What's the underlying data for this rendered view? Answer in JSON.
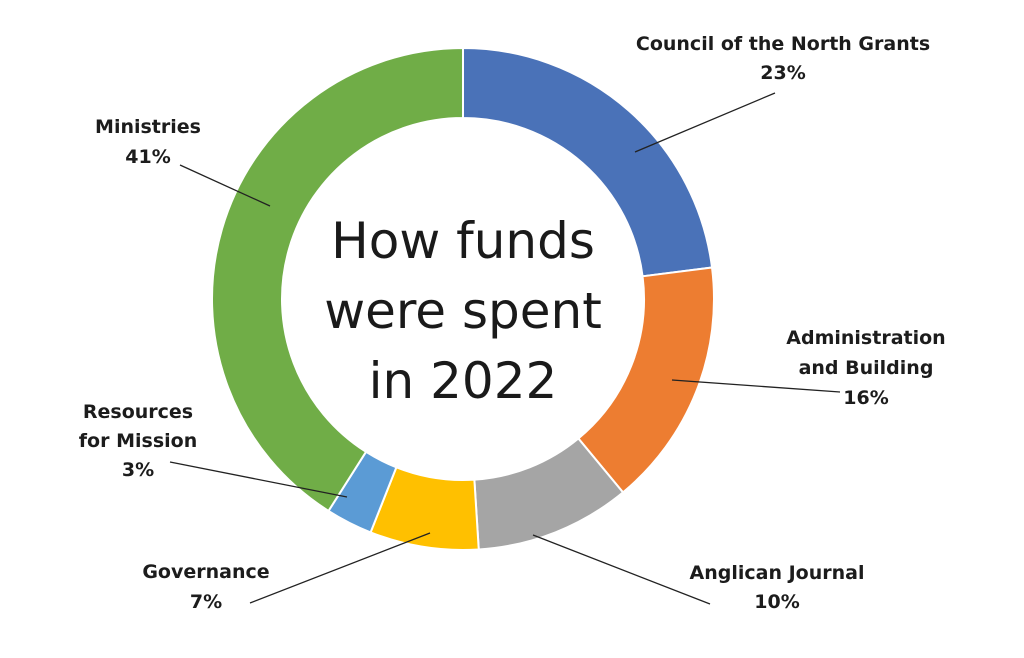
{
  "chart_data": {
    "type": "pie",
    "variant": "donut",
    "title_lines": [
      "How funds",
      "were spent",
      "in 2022"
    ],
    "slices": [
      {
        "label_lines": [
          "Council of the North Grants"
        ],
        "pct_label": "23%",
        "value": 23,
        "color": "#4a72b8"
      },
      {
        "label_lines": [
          "Administration",
          "and Building"
        ],
        "pct_label": "16%",
        "value": 16,
        "color": "#ed7d31"
      },
      {
        "label_lines": [
          "Anglican Journal"
        ],
        "pct_label": "10%",
        "value": 10,
        "color": "#a5a5a5"
      },
      {
        "label_lines": [
          "Governance"
        ],
        "pct_label": "7%",
        "value": 7,
        "color": "#ffc000"
      },
      {
        "label_lines": [
          "Resources",
          "for Mission"
        ],
        "pct_label": "3%",
        "value": 3,
        "color": "#5b9bd5"
      },
      {
        "label_lines": [
          "Ministries"
        ],
        "pct_label": "41%",
        "value": 41,
        "color": "#70ad47"
      }
    ]
  }
}
